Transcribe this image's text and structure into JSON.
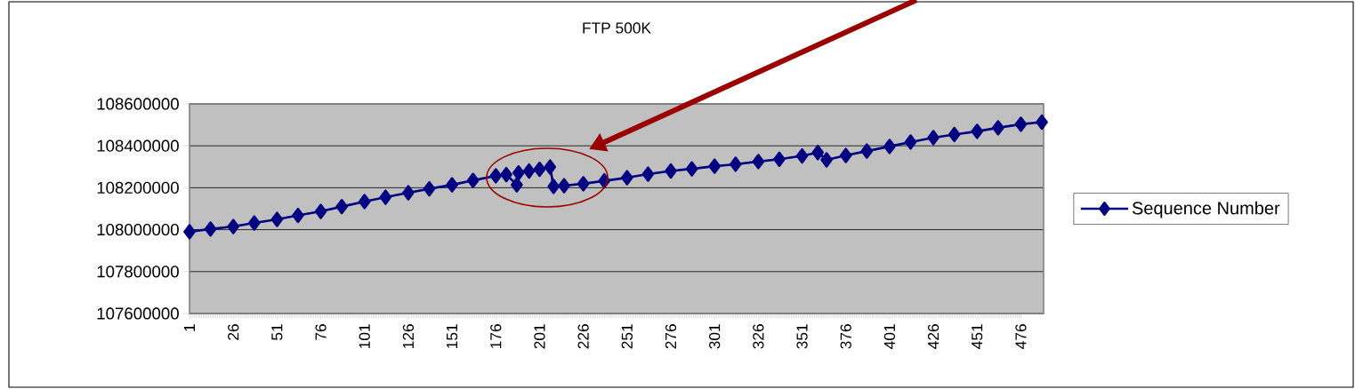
{
  "chart_data": {
    "type": "line",
    "title": "FTP 500K",
    "x": [
      1,
      13,
      26,
      38,
      51,
      63,
      76,
      88,
      101,
      113,
      126,
      138,
      151,
      163,
      176,
      182,
      188,
      189,
      195,
      201,
      207,
      209,
      215,
      226,
      238,
      251,
      263,
      276,
      288,
      301,
      313,
      326,
      338,
      351,
      360,
      365,
      376,
      388,
      401,
      413,
      426,
      438,
      451,
      463,
      476,
      488
    ],
    "series": [
      {
        "name": "Sequence Number",
        "color": "#000080",
        "values": [
          107990000,
          108003000,
          108015000,
          108032000,
          108049000,
          108068000,
          108087000,
          108110000,
          108134000,
          108155000,
          108176000,
          108195000,
          108214000,
          108235000,
          108257000,
          108263000,
          108214000,
          108271000,
          108280000,
          108288000,
          108299000,
          108206000,
          108210000,
          108219000,
          108233000,
          108248000,
          108265000,
          108280000,
          108290000,
          108303000,
          108312000,
          108325000,
          108336000,
          108352000,
          108368000,
          108333000,
          108354000,
          108375000,
          108397000,
          108418000,
          108439000,
          108454000,
          108469000,
          108486000,
          108503000,
          108513000
        ]
      }
    ],
    "xlim": [
      1,
      489
    ],
    "xticks": [
      1,
      26,
      51,
      76,
      101,
      126,
      151,
      176,
      201,
      226,
      251,
      276,
      301,
      326,
      351,
      376,
      401,
      426,
      451,
      476
    ],
    "ylim": [
      107600000,
      108600000
    ],
    "yticks": [
      107600000,
      107800000,
      108000000,
      108200000,
      108400000,
      108600000
    ],
    "grid": "y",
    "legend": "right",
    "marker": "diamond",
    "line_style": "solid"
  }
}
